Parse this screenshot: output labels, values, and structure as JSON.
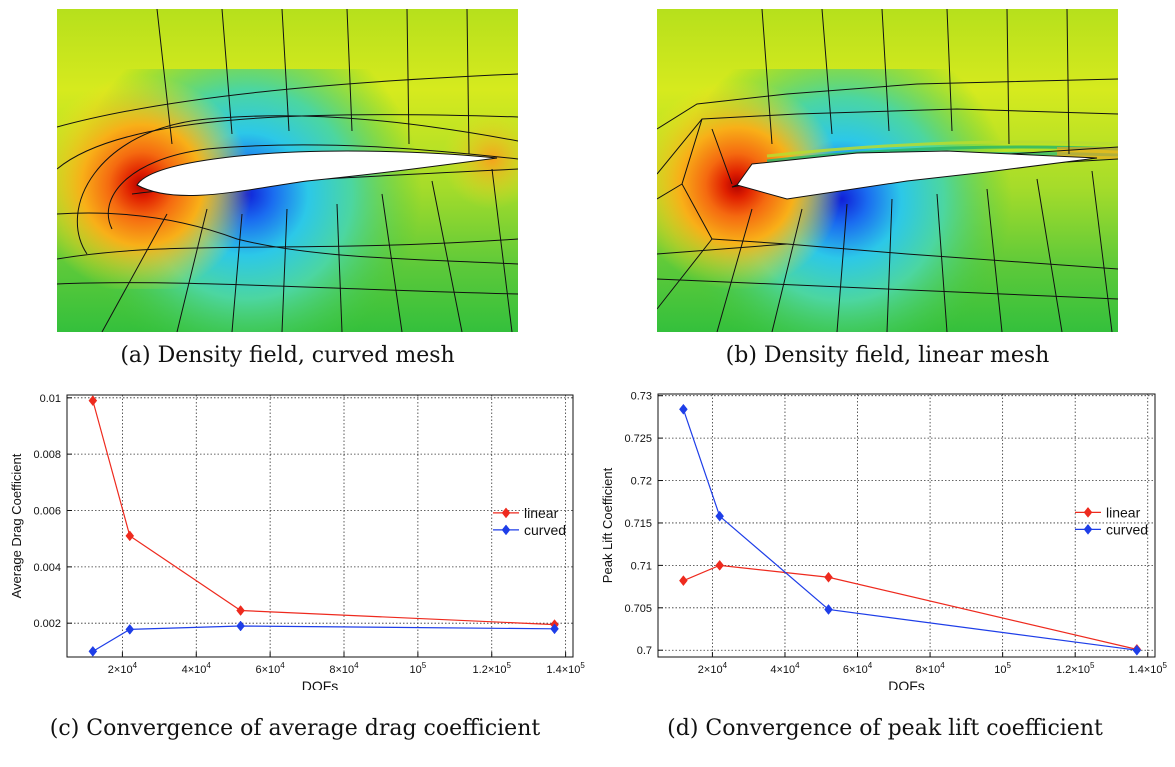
{
  "captions": {
    "a": "(a) Density field, curved mesh",
    "b": "(b) Density field, linear mesh",
    "c": "(c) Convergence of average drag coefficient",
    "d": "(d) Convergence of peak lift coefficient"
  },
  "colors": {
    "linear": "#ee2a1e",
    "curved": "#1e3ee8"
  },
  "chart_data": [
    {
      "type": "line",
      "xlabel": "DOFs",
      "ylabel": "Average Drag Coefficient",
      "xlim": [
        5000,
        142000
      ],
      "ylim": [
        0.0008,
        0.0101
      ],
      "xticks": [
        {
          "v": 20000,
          "label": "2x10^4"
        },
        {
          "v": 40000,
          "label": "4x10^4"
        },
        {
          "v": 60000,
          "label": "6x10^4"
        },
        {
          "v": 80000,
          "label": "8x10^4"
        },
        {
          "v": 100000,
          "label": "10^5"
        },
        {
          "v": 120000,
          "label": "1.2x10^5"
        },
        {
          "v": 140000,
          "label": "1.4x10^5"
        }
      ],
      "yticks": [
        {
          "v": 0.002,
          "label": "0.002"
        },
        {
          "v": 0.004,
          "label": "0.004"
        },
        {
          "v": 0.006,
          "label": "0.006"
        },
        {
          "v": 0.008,
          "label": "0.008"
        },
        {
          "v": 0.01,
          "label": "0.01"
        }
      ],
      "grid": true,
      "legend_position": "right",
      "series": [
        {
          "name": "linear",
          "color_key": "linear",
          "x": [
            12000,
            22000,
            52000,
            137000
          ],
          "y": [
            0.0099,
            0.0051,
            0.00245,
            0.00195
          ]
        },
        {
          "name": "curved",
          "color_key": "curved",
          "x": [
            12000,
            22000,
            52000,
            137000
          ],
          "y": [
            0.001,
            0.00178,
            0.0019,
            0.0018
          ]
        }
      ]
    },
    {
      "type": "line",
      "xlabel": "DOFs",
      "ylabel": "Peak Lift Coefficient",
      "xlim": [
        5000,
        142000
      ],
      "ylim": [
        0.6992,
        0.7302
      ],
      "xticks": [
        {
          "v": 20000,
          "label": "2x10^4"
        },
        {
          "v": 40000,
          "label": "4x10^4"
        },
        {
          "v": 60000,
          "label": "6x10^4"
        },
        {
          "v": 80000,
          "label": "8x10^4"
        },
        {
          "v": 100000,
          "label": "10^5"
        },
        {
          "v": 120000,
          "label": "1.2x10^5"
        },
        {
          "v": 140000,
          "label": "1.4x10^5"
        }
      ],
      "yticks": [
        {
          "v": 0.7,
          "label": "0.7"
        },
        {
          "v": 0.705,
          "label": "0.705"
        },
        {
          "v": 0.71,
          "label": "0.71"
        },
        {
          "v": 0.715,
          "label": "0.715"
        },
        {
          "v": 0.72,
          "label": "0.72"
        },
        {
          "v": 0.725,
          "label": "0.725"
        },
        {
          "v": 0.73,
          "label": "0.73"
        }
      ],
      "grid": true,
      "legend_position": "right",
      "series": [
        {
          "name": "linear",
          "color_key": "linear",
          "x": [
            12000,
            22000,
            52000,
            137000
          ],
          "y": [
            0.7082,
            0.71,
            0.7086,
            0.7001
          ]
        },
        {
          "name": "curved",
          "color_key": "curved",
          "x": [
            12000,
            22000,
            52000,
            137000
          ],
          "y": [
            0.7284,
            0.7158,
            0.7048,
            0.7
          ]
        }
      ]
    }
  ]
}
